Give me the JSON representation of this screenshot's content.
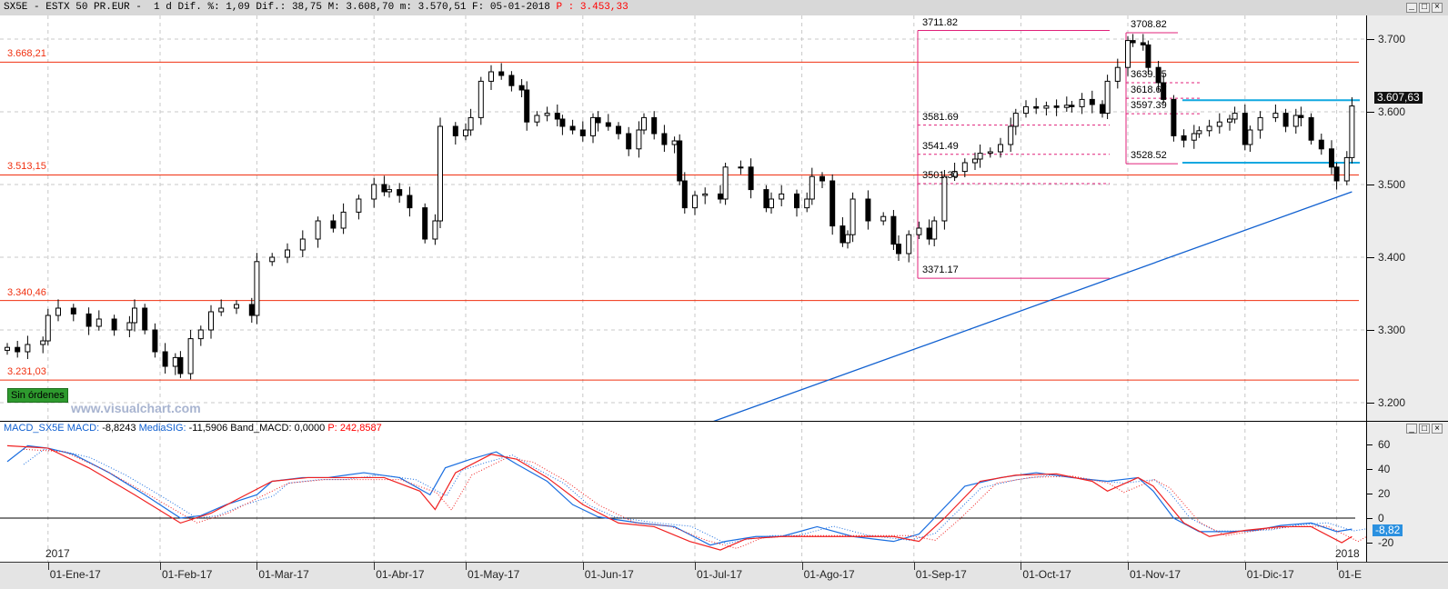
{
  "header": {
    "symbol": "SX5E",
    "name": "ESTX 50 PR.EUR",
    "period": "1 d",
    "dif_pct_label": "Dif. %:",
    "dif_pct": "1,09",
    "dif_label": "Dif.:",
    "dif": "38,75",
    "max_label": "M:",
    "max": "3.608,70",
    "min_label": "m:",
    "min": "3.570,51",
    "date_label": "F:",
    "date": "05-01-2018",
    "p_label": "P :",
    "p": "3.453,33"
  },
  "window_buttons": [
    "_",
    "□",
    "×"
  ],
  "levels": [
    {
      "label": "3.668,21",
      "price": 3668.21
    },
    {
      "label": "3.513,15",
      "price": 3513.15
    },
    {
      "label": "3.340,46",
      "price": 3340.46
    },
    {
      "label": "3.231,03",
      "price": 3231.03
    }
  ],
  "orders_badge": "Sin órdenes",
  "watermark": "www.visualchart.com",
  "price_axis": {
    "ticks": [
      "3.700",
      "3.600",
      "3.500",
      "3.400",
      "3.300",
      "3.200"
    ],
    "tick_values": [
      3700,
      3600,
      3500,
      3400,
      3300,
      3200
    ],
    "current": "3.607,63",
    "current_value": 3607.63
  },
  "fib_left": {
    "labels": [
      "3711.82",
      "3581.69",
      "3541.49",
      "3501.30",
      "3371.17"
    ],
    "values": [
      3711.82,
      3581.69,
      3541.49,
      3501.3,
      3371.17
    ]
  },
  "fib_right": {
    "labels": [
      "3708.82",
      "3639.95",
      "3618.67",
      "3597.39",
      "3528.52"
    ],
    "values": [
      3708.82,
      3639.95,
      3618.67,
      3597.39,
      3528.52
    ]
  },
  "channel": {
    "upper": 3616,
    "lower": 3530,
    "color": "#10a8e0"
  },
  "trendline": {
    "from": [
      131,
      3155
    ],
    "to": [
      264,
      3490
    ],
    "color": "#1060d0"
  },
  "macd": {
    "title": "MACD_SX5E",
    "macd_label": "MACD:",
    "macd_value": "-8,8243",
    "sig_label": "MediaSIG:",
    "sig_value": "-11,5906",
    "band_label": "Band_MACD:",
    "band_value": "0,0000",
    "p_label": "P:",
    "p_value": "242,8587",
    "axis_ticks": [
      "60",
      "40",
      "20",
      "0",
      "-20"
    ],
    "axis_values": [
      60,
      40,
      20,
      0,
      -20
    ],
    "current": "-8,82",
    "current_value": -8.82
  },
  "x_axis": {
    "year_start": "2017",
    "year_end": "2018",
    "months": [
      "01-Ene-17",
      "01-Feb-17",
      "01-Mar-17",
      "01-Abr-17",
      "01-May-17",
      "01-Jun-17",
      "01-Jul-17",
      "01-Ago-17",
      "01-Sep-17",
      "01-Oct-17",
      "01-Nov-17",
      "01-Dic-17",
      "01-E"
    ],
    "month_sessions": [
      8,
      30,
      49,
      72,
      90,
      113,
      135,
      156,
      178,
      199,
      220,
      243,
      261
    ]
  },
  "chart_data": {
    "type": "candlestick",
    "ylim": [
      3185,
      3730
    ],
    "series": [
      {
        "kind": "close",
        "points": [
          [
            0,
            3276
          ],
          [
            2,
            3270
          ],
          [
            4,
            3280
          ],
          [
            7,
            3285
          ],
          [
            8,
            3320
          ],
          [
            10,
            3330
          ],
          [
            13,
            3322
          ],
          [
            16,
            3305
          ],
          [
            18,
            3315
          ],
          [
            21,
            3300
          ],
          [
            24,
            3310
          ],
          [
            25,
            3330
          ],
          [
            27,
            3300
          ],
          [
            29,
            3270
          ],
          [
            31,
            3250
          ],
          [
            33,
            3262
          ],
          [
            34,
            3240
          ],
          [
            36,
            3288
          ],
          [
            38,
            3300
          ],
          [
            40,
            3325
          ],
          [
            42,
            3330
          ],
          [
            45,
            3335
          ],
          [
            48,
            3320
          ],
          [
            49,
            3394
          ],
          [
            52,
            3400
          ],
          [
            55,
            3410
          ],
          [
            58,
            3425
          ],
          [
            61,
            3450
          ],
          [
            64,
            3440
          ],
          [
            66,
            3462
          ],
          [
            69,
            3480
          ],
          [
            72,
            3500
          ],
          [
            74,
            3490
          ],
          [
            75,
            3493
          ],
          [
            77,
            3485
          ],
          [
            79,
            3468
          ],
          [
            82,
            3425
          ],
          [
            84,
            3450
          ],
          [
            85,
            3580
          ],
          [
            88,
            3567
          ],
          [
            90,
            3575
          ],
          [
            91,
            3592
          ],
          [
            93,
            3642
          ],
          [
            95,
            3655
          ],
          [
            97,
            3650
          ],
          [
            99,
            3636
          ],
          [
            101,
            3630
          ],
          [
            102,
            3586
          ],
          [
            104,
            3595
          ],
          [
            106,
            3598
          ],
          [
            108,
            3590
          ],
          [
            109,
            3580
          ],
          [
            111,
            3575
          ],
          [
            113,
            3567
          ],
          [
            115,
            3592
          ],
          [
            116,
            3585
          ],
          [
            118,
            3580
          ],
          [
            120,
            3570
          ],
          [
            122,
            3549
          ],
          [
            124,
            3575
          ],
          [
            125,
            3592
          ],
          [
            127,
            3570
          ],
          [
            129,
            3555
          ],
          [
            131,
            3560
          ],
          [
            132,
            3505
          ],
          [
            133,
            3468
          ],
          [
            135,
            3485
          ],
          [
            137,
            3487
          ],
          [
            140,
            3480
          ],
          [
            141,
            3524
          ],
          [
            144,
            3524
          ],
          [
            146,
            3493
          ],
          [
            149,
            3468
          ],
          [
            150,
            3480
          ],
          [
            152,
            3487
          ],
          [
            155,
            3468
          ],
          [
            157,
            3480
          ],
          [
            158,
            3511
          ],
          [
            160,
            3505
          ],
          [
            162,
            3443
          ],
          [
            164,
            3420
          ],
          [
            165,
            3431
          ],
          [
            166,
            3480
          ],
          [
            169,
            3450
          ],
          [
            172,
            3456
          ],
          [
            174,
            3418
          ],
          [
            175,
            3405
          ],
          [
            177,
            3431
          ],
          [
            179,
            3440
          ],
          [
            181,
            3425
          ],
          [
            182,
            3450
          ],
          [
            184,
            3511
          ],
          [
            186,
            3518
          ],
          [
            188,
            3530
          ],
          [
            190,
            3535
          ],
          [
            191,
            3543
          ],
          [
            193,
            3545
          ],
          [
            195,
            3555
          ],
          [
            197,
            3580
          ],
          [
            198,
            3598
          ],
          [
            200,
            3607
          ],
          [
            202,
            3605
          ],
          [
            204,
            3608
          ],
          [
            206,
            3606
          ],
          [
            208,
            3609
          ],
          [
            209,
            3607
          ],
          [
            211,
            3617
          ],
          [
            213,
            3610
          ],
          [
            215,
            3598
          ],
          [
            216,
            3642
          ],
          [
            218,
            3661
          ],
          [
            220,
            3698
          ],
          [
            221,
            3695
          ],
          [
            223,
            3692
          ],
          [
            224,
            3661
          ],
          [
            226,
            3640
          ],
          [
            227,
            3617
          ],
          [
            229,
            3567
          ],
          [
            231,
            3561
          ],
          [
            233,
            3570
          ],
          [
            234,
            3574
          ],
          [
            236,
            3580
          ],
          [
            238,
            3586
          ],
          [
            240,
            3590
          ],
          [
            241,
            3598
          ],
          [
            243,
            3555
          ],
          [
            244,
            3575
          ],
          [
            246,
            3592
          ],
          [
            249,
            3598
          ],
          [
            251,
            3580
          ],
          [
            253,
            3595
          ],
          [
            254,
            3592
          ],
          [
            256,
            3561
          ],
          [
            258,
            3549
          ],
          [
            260,
            3524
          ],
          [
            261,
            3505
          ],
          [
            263,
            3537
          ],
          [
            264,
            3608
          ]
        ]
      }
    ]
  },
  "macd_data": {
    "type": "line",
    "ylim": [
      -35,
      70
    ],
    "series": [
      {
        "name": "MACD",
        "color": "#1a6ee0",
        "points": [
          [
            0,
            46
          ],
          [
            4,
            59
          ],
          [
            8,
            57
          ],
          [
            13,
            52
          ],
          [
            20,
            37
          ],
          [
            27,
            19
          ],
          [
            34,
            0
          ],
          [
            38,
            2
          ],
          [
            43,
            11
          ],
          [
            49,
            19
          ],
          [
            52,
            30
          ],
          [
            58,
            33
          ],
          [
            63,
            33
          ],
          [
            70,
            37
          ],
          [
            77,
            33
          ],
          [
            83,
            19
          ],
          [
            86,
            41
          ],
          [
            91,
            48
          ],
          [
            96,
            54
          ],
          [
            100,
            44
          ],
          [
            106,
            30
          ],
          [
            111,
            11
          ],
          [
            116,
            1
          ],
          [
            124,
            -4
          ],
          [
            131,
            -7
          ],
          [
            138,
            -22
          ],
          [
            141,
            -19
          ],
          [
            147,
            -15
          ],
          [
            152,
            -15
          ],
          [
            159,
            -7
          ],
          [
            166,
            -15
          ],
          [
            174,
            -19
          ],
          [
            179,
            -13
          ],
          [
            182,
            0
          ],
          [
            188,
            26
          ],
          [
            195,
            33
          ],
          [
            202,
            37
          ],
          [
            209,
            33
          ],
          [
            216,
            30
          ],
          [
            222,
            33
          ],
          [
            225,
            22
          ],
          [
            229,
            0
          ],
          [
            234,
            -11
          ],
          [
            240,
            -11
          ],
          [
            245,
            -10
          ],
          [
            250,
            -6
          ],
          [
            256,
            -4
          ],
          [
            261,
            -11
          ],
          [
            264,
            -9
          ]
        ]
      },
      {
        "name": "MediaSIG",
        "color": "#f02020",
        "points": [
          [
            0,
            59
          ],
          [
            8,
            57
          ],
          [
            16,
            41
          ],
          [
            25,
            19
          ],
          [
            34,
            -4
          ],
          [
            40,
            4
          ],
          [
            45,
            15
          ],
          [
            52,
            30
          ],
          [
            59,
            33
          ],
          [
            66,
            33
          ],
          [
            74,
            33
          ],
          [
            81,
            22
          ],
          [
            84,
            7
          ],
          [
            88,
            37
          ],
          [
            95,
            52
          ],
          [
            100,
            48
          ],
          [
            106,
            33
          ],
          [
            113,
            11
          ],
          [
            120,
            -4
          ],
          [
            127,
            -7
          ],
          [
            134,
            -19
          ],
          [
            140,
            -26
          ],
          [
            145,
            -17
          ],
          [
            152,
            -15
          ],
          [
            159,
            -15
          ],
          [
            166,
            -15
          ],
          [
            174,
            -15
          ],
          [
            179,
            -19
          ],
          [
            184,
            0
          ],
          [
            191,
            30
          ],
          [
            198,
            35
          ],
          [
            206,
            36
          ],
          [
            213,
            30
          ],
          [
            216,
            22
          ],
          [
            222,
            33
          ],
          [
            225,
            26
          ],
          [
            231,
            -4
          ],
          [
            236,
            -15
          ],
          [
            243,
            -10
          ],
          [
            250,
            -7
          ],
          [
            256,
            -7
          ],
          [
            262,
            -20
          ],
          [
            264,
            -15
          ]
        ]
      }
    ]
  }
}
